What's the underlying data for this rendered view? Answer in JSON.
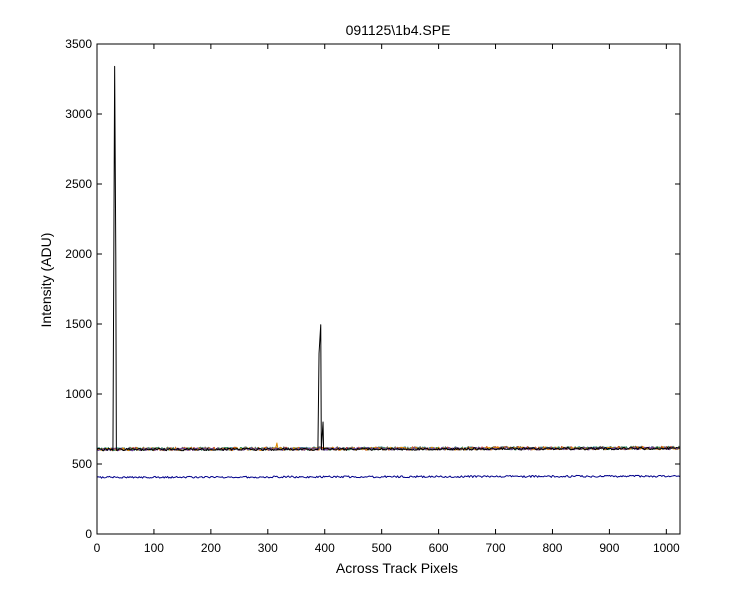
{
  "chart_data": {
    "type": "line",
    "title": "091125\\1b4.SPE",
    "xlabel": "Across Track Pixels",
    "ylabel": "Intensity (ADU)",
    "xlim": [
      0,
      1024
    ],
    "ylim": [
      0,
      3500
    ],
    "x_ticks": [
      0,
      100,
      200,
      300,
      400,
      500,
      600,
      700,
      800,
      900,
      1000
    ],
    "y_ticks": [
      0,
      500,
      1000,
      1500,
      2000,
      2500,
      3000,
      3500
    ],
    "grid": false,
    "legend": "none",
    "series": [
      {
        "color": "#1f9e9e",
        "baseline": 608,
        "noise": 12,
        "spikes": []
      },
      {
        "color": "#c0392b",
        "baseline": 607,
        "noise": 12,
        "spikes": []
      },
      {
        "color": "#2e8b57",
        "baseline": 606,
        "noise": 11,
        "spikes": []
      },
      {
        "color": "#e08a00",
        "baseline": 605,
        "noise": 11,
        "spikes": [
          [
            316,
            650
          ]
        ]
      },
      {
        "color": "#6a3d9a",
        "baseline": 604,
        "noise": 10,
        "spikes": []
      },
      {
        "color": "#000000",
        "baseline": 603,
        "noise": 9,
        "spikes": [
          [
            31,
            3340
          ],
          [
            33,
            1980
          ],
          [
            390,
            1290
          ],
          [
            393,
            1495
          ],
          [
            397,
            800
          ]
        ]
      },
      {
        "color": "#00008b",
        "baseline": 405,
        "noise": 7,
        "spikes": []
      }
    ]
  }
}
